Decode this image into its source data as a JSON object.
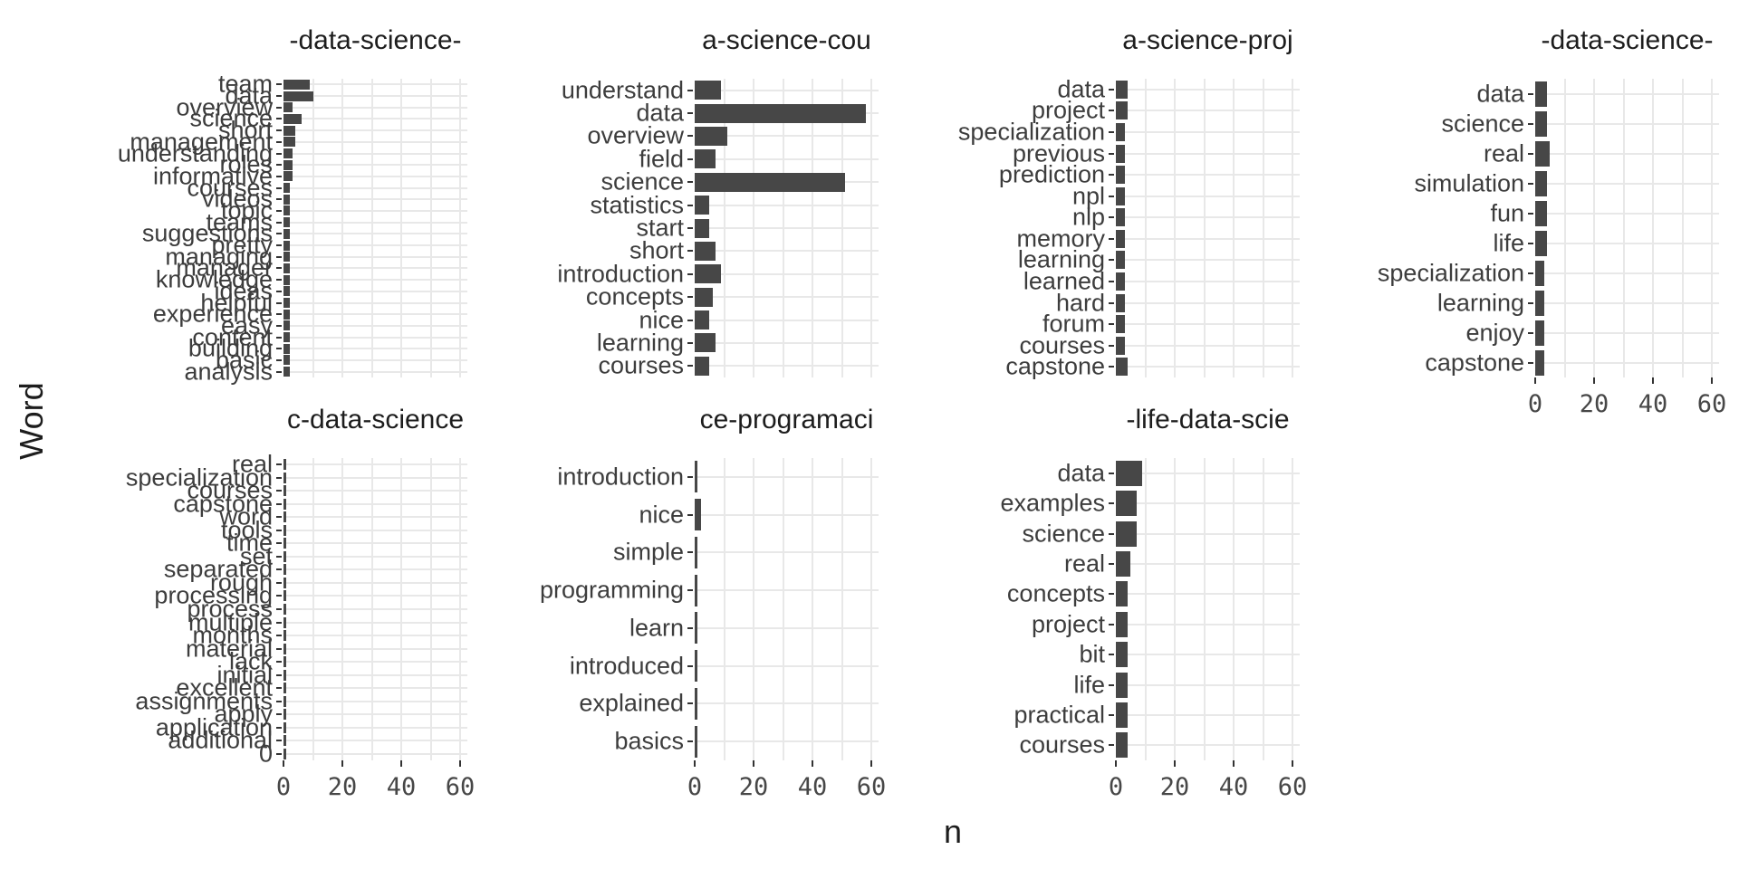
{
  "figure": {
    "x_axis_title": "n",
    "y_axis_title": "Word",
    "bar_color": "#474747",
    "grid_color": "#e8e8e8",
    "title_color": "#1d1d1d",
    "label_color": "#3d3d3d"
  },
  "chart_data": {
    "type": "bar",
    "orientation": "horizontal",
    "title": "",
    "xlabel": "n",
    "ylabel": "Word",
    "x_ticks": [
      0,
      20,
      40,
      60
    ],
    "xlim": [
      0,
      62
    ],
    "grid": true,
    "facets": [
      {
        "title": "-data-science-",
        "row": 0,
        "col": 0,
        "categories": [
          "team",
          "data",
          "overview",
          "science",
          "short",
          "management",
          "understanding",
          "roles",
          "informative",
          "courses",
          "videos",
          "topic",
          "teams",
          "suggestions",
          "pretty",
          "managing",
          "manager",
          "knowledge",
          "ideas",
          "helpful",
          "experience",
          "easy",
          "content",
          "building",
          "basic",
          "analysis"
        ],
        "values": [
          9,
          10,
          3,
          6,
          4,
          4,
          3,
          3,
          3,
          2,
          2,
          2,
          2,
          2,
          2,
          2,
          2,
          2,
          2,
          2,
          2,
          2,
          2,
          2,
          2,
          2
        ]
      },
      {
        "title": "a-science-cou",
        "row": 0,
        "col": 1,
        "categories": [
          "understand",
          "data",
          "overview",
          "field",
          "science",
          "statistics",
          "start",
          "short",
          "introduction",
          "concepts",
          "nice",
          "learning",
          "courses"
        ],
        "values": [
          9,
          58,
          11,
          7,
          51,
          5,
          5,
          7,
          9,
          6,
          5,
          7,
          5
        ]
      },
      {
        "title": "a-science-proj",
        "row": 0,
        "col": 2,
        "categories": [
          "data",
          "project",
          "specialization",
          "previous",
          "prediction",
          "npl",
          "nlp",
          "memory",
          "learning",
          "learned",
          "hard",
          "forum",
          "courses",
          "capstone"
        ],
        "values": [
          4,
          4,
          3,
          3,
          3,
          3,
          3,
          3,
          3,
          3,
          3,
          3,
          3,
          4
        ]
      },
      {
        "title": "-data-science-",
        "row": 0,
        "col": 3,
        "categories": [
          "data",
          "science",
          "real",
          "simulation",
          "fun",
          "life",
          "specialization",
          "learning",
          "enjoy",
          "capstone"
        ],
        "values": [
          4,
          4,
          5,
          4,
          4,
          4,
          3,
          3,
          3,
          3
        ]
      },
      {
        "title": "c-data-science",
        "row": 1,
        "col": 0,
        "categories": [
          "real",
          "specialization",
          "courses",
          "capstone",
          "word",
          "tools",
          "time",
          "set",
          "separated",
          "rough",
          "processing",
          "process",
          "multiple",
          "months",
          "material",
          "lack",
          "initial",
          "excellent",
          "assignments",
          "apply",
          "application",
          "additional",
          "0"
        ],
        "values": [
          1,
          1,
          1,
          1,
          1,
          1,
          1,
          1,
          1,
          1,
          1,
          1,
          1,
          1,
          1,
          1,
          1,
          1,
          1,
          1,
          1,
          1,
          1
        ]
      },
      {
        "title": "ce-programaci",
        "row": 1,
        "col": 1,
        "categories": [
          "introduction",
          "nice",
          "simple",
          "programming",
          "learn",
          "introduced",
          "explained",
          "basics"
        ],
        "values": [
          1,
          2,
          1,
          1,
          1,
          1,
          1,
          1
        ]
      },
      {
        "title": "-life-data-scie",
        "row": 1,
        "col": 2,
        "categories": [
          "data",
          "examples",
          "science",
          "real",
          "concepts",
          "project",
          "bit",
          "life",
          "practical",
          "courses"
        ],
        "values": [
          9,
          7,
          7,
          5,
          4,
          4,
          4,
          4,
          4,
          4
        ]
      }
    ]
  }
}
